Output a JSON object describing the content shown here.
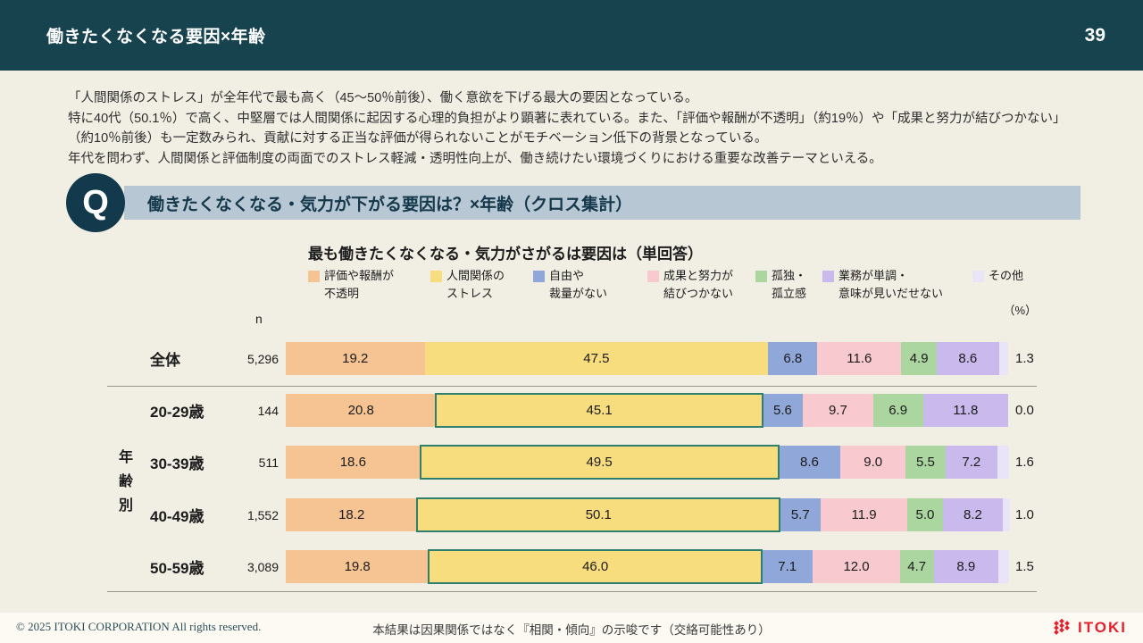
{
  "header": {
    "title": "働きたくなくなる要因×年齢",
    "page_number": "39"
  },
  "summary": {
    "lines": [
      "「人間関係のストレス」が全年代で最も高く（45～50％前後）、働く意欲を下げる最大の要因となっている。",
      "特に40代（50.1％）で高く、中堅層では人間関係に起因する心理的負担がより顕著に表れている。また、「評価や報酬が不透明」（約19％）や「成果と努力が結びつかない」",
      "（約10％前後）も一定数みられ、貢献に対する正当な評価が得られないことがモチベーション低下の背景となっている。",
      "年代を問わず、人間関係と評価制度の両面でのストレス軽減・透明性向上が、働き続けたい環境づくりにおける重要な改善テーマといえる。"
    ]
  },
  "question": {
    "q_mark": "Q",
    "text": "働きたくなくなる・気力が下がる要因は？×年齢（クロス集計）"
  },
  "chart": {
    "n_header": "n",
    "unit_label": "（%）",
    "group_label": "年齢別"
  },
  "chart_data": {
    "type": "bar",
    "subtype": "stacked-horizontal",
    "title": "最も働きたくなくなる・気力がさがるは要因は（単回答）",
    "unit": "%",
    "x_range": [
      0,
      100
    ],
    "categories": [
      "全体",
      "20-29歳",
      "30-39歳",
      "40-49歳",
      "50-59歳"
    ],
    "n_values": [
      "5,296",
      "144",
      "511",
      "1,552",
      "3,089"
    ],
    "series": [
      {
        "name": "評価や報酬が不透明",
        "color": "#f6c493",
        "values": [
          19.2,
          20.8,
          18.6,
          18.2,
          19.8
        ]
      },
      {
        "name": "人間関係のストレス",
        "color": "#f8dd7f",
        "values": [
          47.5,
          45.1,
          49.5,
          50.1,
          46.0
        ]
      },
      {
        "name": "自由や裁量がない",
        "color": "#90a7d9",
        "values": [
          6.8,
          5.6,
          8.6,
          5.7,
          7.1
        ]
      },
      {
        "name": "成果と努力が結びつかない",
        "color": "#f8c9ce",
        "values": [
          11.6,
          9.7,
          9.0,
          11.9,
          12.0
        ]
      },
      {
        "name": "孤独・孤立感",
        "color": "#abd6a0",
        "values": [
          4.9,
          6.9,
          5.5,
          5.0,
          4.7
        ]
      },
      {
        "name": "業務が単調・意味が見いだせない",
        "color": "#c9b9ed",
        "values": [
          8.6,
          11.8,
          7.2,
          8.2,
          8.9
        ]
      },
      {
        "name": "その他",
        "color": "#eae4f8",
        "values": [
          1.3,
          0.0,
          1.6,
          1.0,
          1.5
        ]
      }
    ],
    "legend": [
      {
        "line1": "評価や報酬が",
        "line2": "不透明",
        "color": "#f6c493"
      },
      {
        "line1": "人間関係の",
        "line2": "ストレス",
        "color": "#f8dd7f"
      },
      {
        "line1": "自由や",
        "line2": "裁量がない",
        "color": "#90a7d9"
      },
      {
        "line1": "成果と努力が",
        "line2": "結びつかない",
        "color": "#f8c9ce"
      },
      {
        "line1": "孤独・",
        "line2": "孤立感",
        "color": "#abd6a0"
      },
      {
        "line1": "業務が単調・",
        "line2": "意味が見いだせない",
        "color": "#c9b9ed"
      },
      {
        "line1": "その他",
        "line2": "",
        "color": "#eae4f8"
      }
    ],
    "highlight_series_index": 1,
    "highlighted_rows": [
      "20-29歳",
      "30-39歳",
      "40-49歳",
      "50-59歳"
    ],
    "highlight_color": "#2f7f6d"
  },
  "footer": {
    "copyright": "© 2025 ITOKI CORPORATION All rights reserved.",
    "note": "本結果は因果関係ではなく『相関・傾向』の示唆です（交絡可能性あり）",
    "logo_text": "ITOKI"
  }
}
